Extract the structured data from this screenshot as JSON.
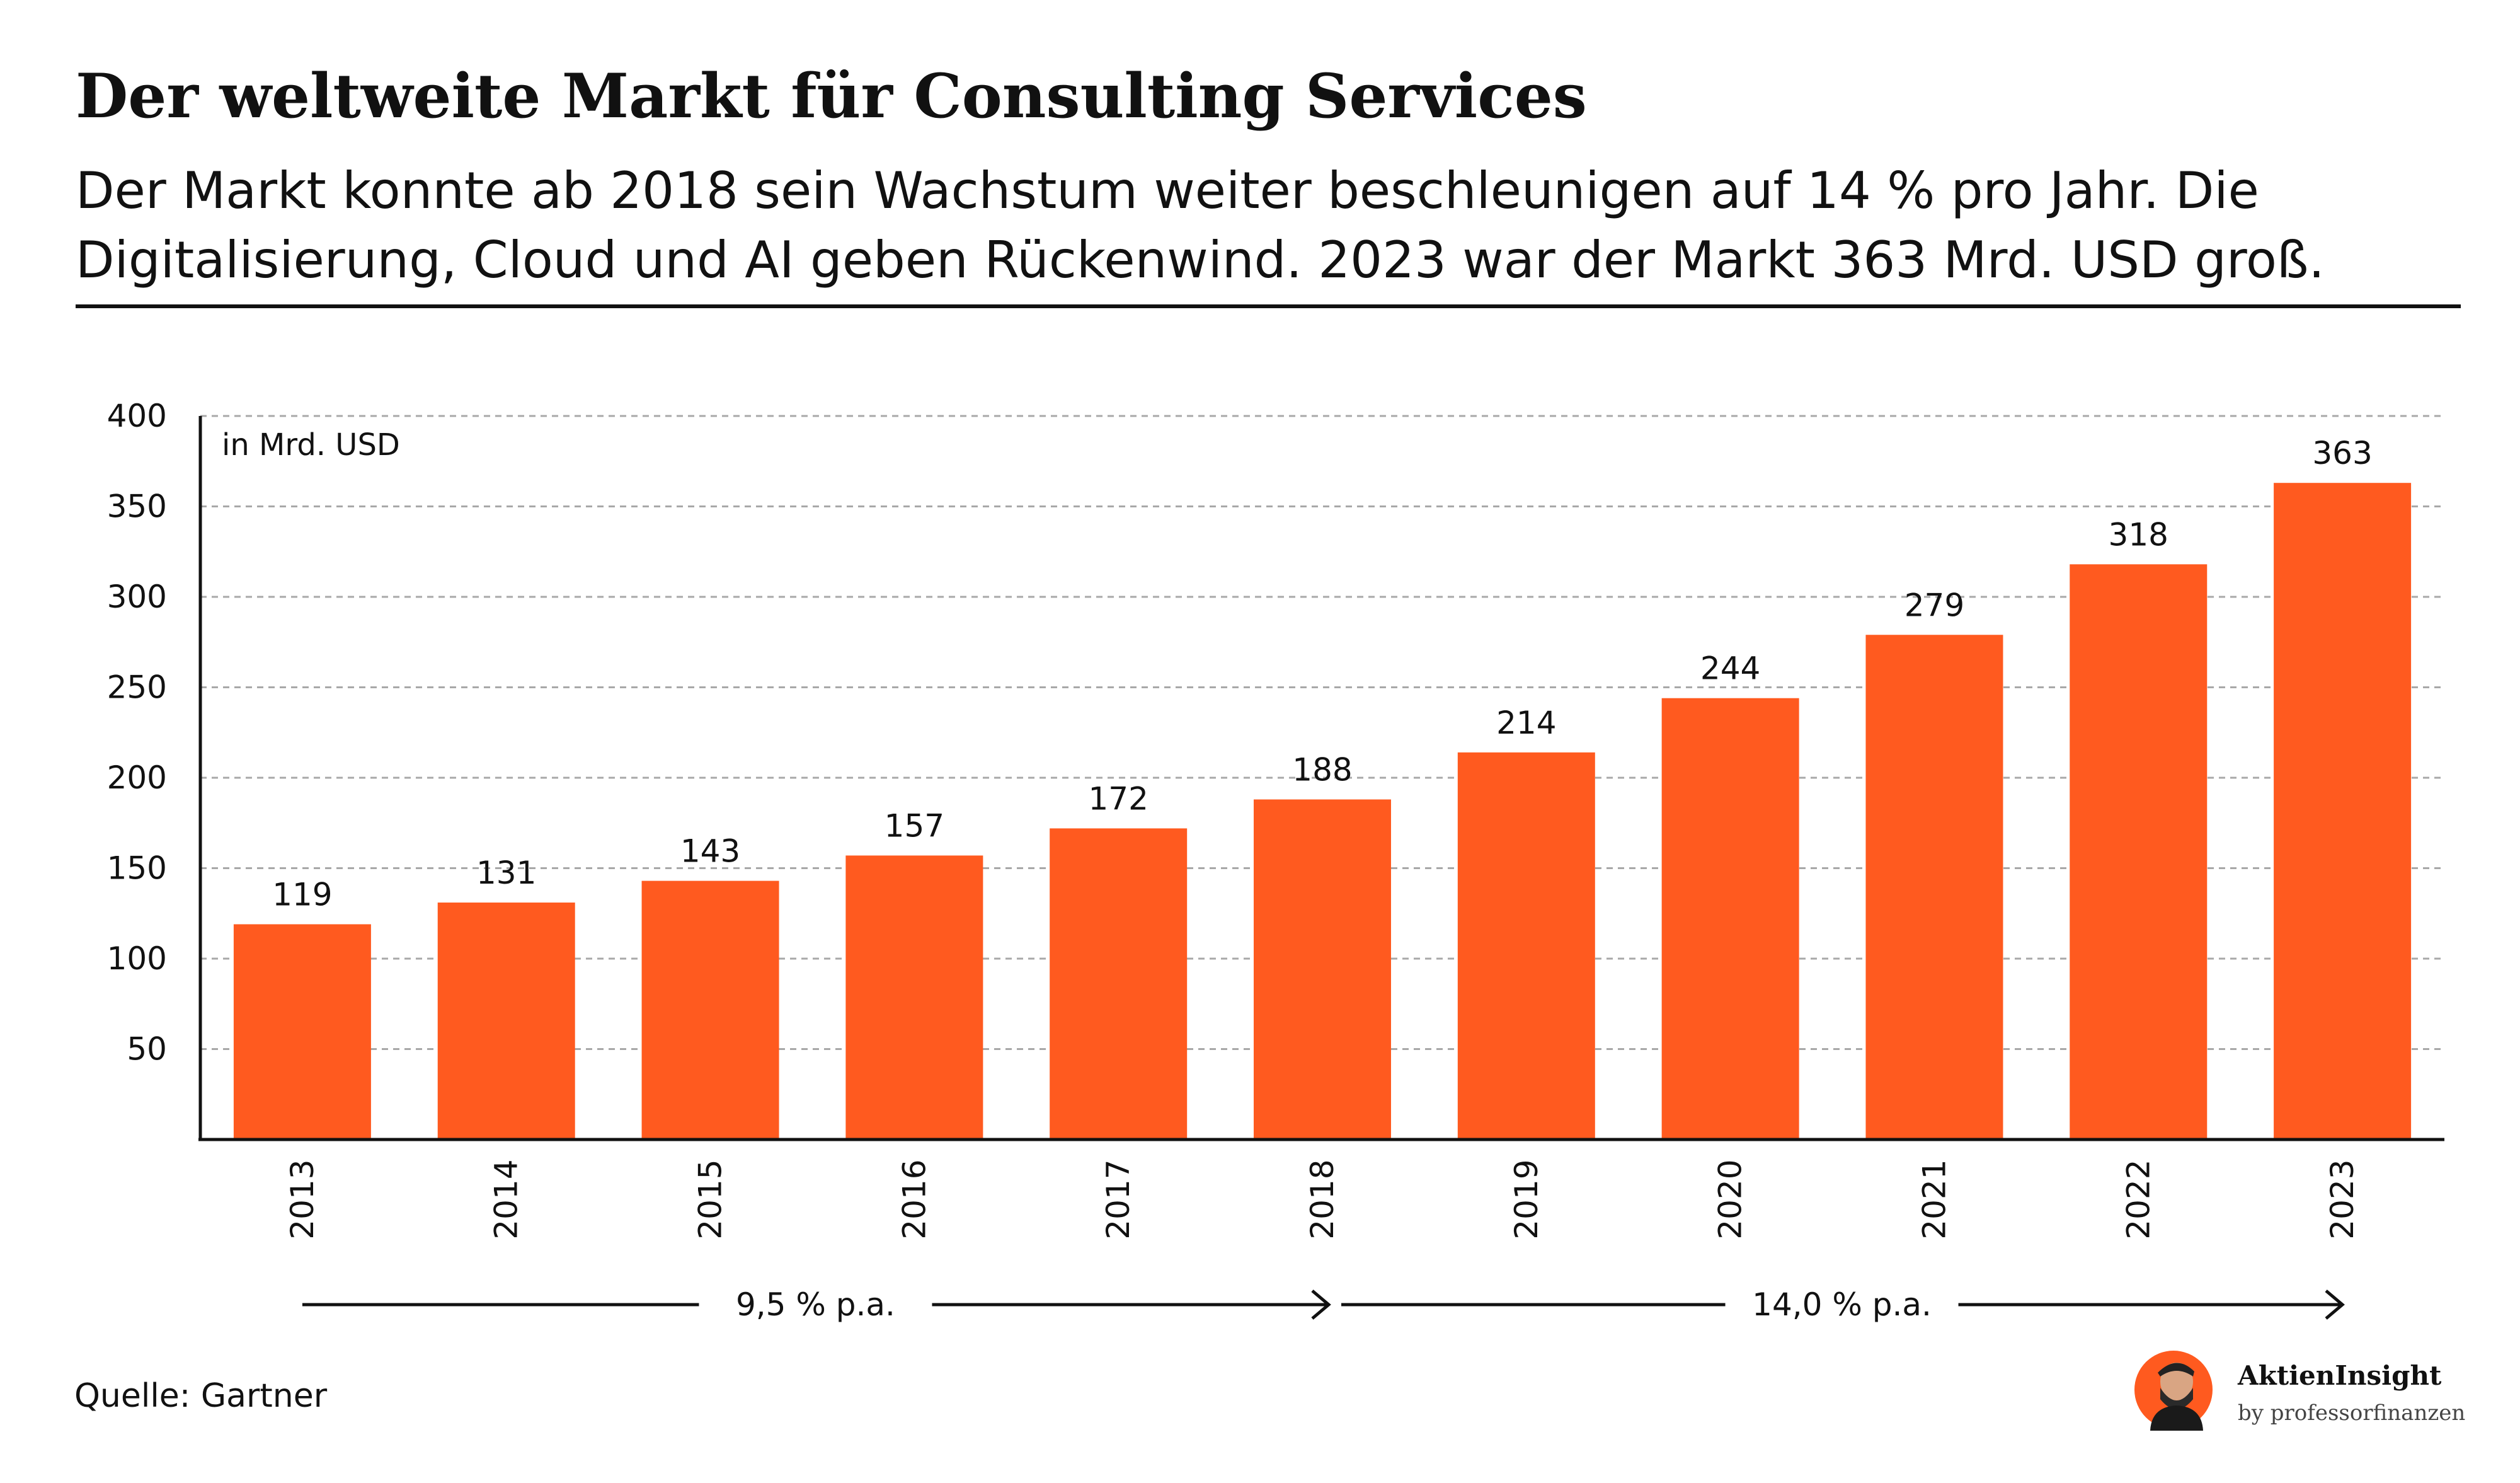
{
  "header": {
    "title": "Der weltweite Markt für Consulting Services",
    "subtitle": "Der Markt konnte ab 2018 sein Wachstum weiter beschleunigen auf 14 % pro Jahr. Die Digitalisierung, Cloud und AI geben Rückenwind. 2023 war der Markt 363 Mrd. USD groß."
  },
  "chart_data": {
    "type": "bar",
    "categories": [
      "2013",
      "2014",
      "2015",
      "2016",
      "2017",
      "2018",
      "2019",
      "2020",
      "2021",
      "2022",
      "2023"
    ],
    "values": [
      119,
      131,
      143,
      157,
      172,
      188,
      214,
      244,
      279,
      318,
      363
    ],
    "unit_label": "in Mrd. USD",
    "ylim": [
      0,
      400
    ],
    "yticks": [
      50,
      100,
      150,
      200,
      250,
      300,
      350,
      400
    ],
    "grid": true,
    "bar_color": "#FF5A1F",
    "growth_periods": [
      {
        "from": "2013",
        "to": "2018",
        "label": "9,5 % p.a."
      },
      {
        "from": "2018",
        "to": "2023",
        "label": "14,0 % p.a."
      }
    ]
  },
  "footer": {
    "source": "Quelle: Gartner",
    "brand": "AktienInsight",
    "brand_sub": "by professorfinanzen"
  }
}
